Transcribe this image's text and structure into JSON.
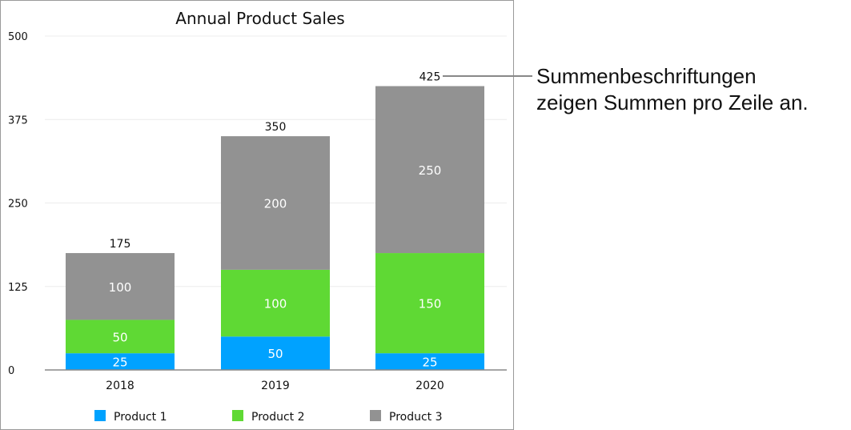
{
  "chart_data": {
    "type": "bar",
    "stacked": true,
    "title": "Annual Product Sales",
    "categories": [
      "2018",
      "2019",
      "2020"
    ],
    "series": [
      {
        "name": "Product 1",
        "color": "#00a2ff",
        "values": [
          25,
          50,
          25
        ]
      },
      {
        "name": "Product 2",
        "color": "#5fd934",
        "values": [
          50,
          100,
          150
        ]
      },
      {
        "name": "Product 3",
        "color": "#929292",
        "values": [
          100,
          200,
          250
        ]
      }
    ],
    "totals": [
      175,
      350,
      425
    ],
    "yticks": [
      0,
      125,
      250,
      375,
      500
    ],
    "ylim": [
      0,
      500
    ],
    "grid": true,
    "legend": "bottom"
  },
  "annotation": {
    "lines": [
      "Summenbeschriftungen",
      "zeigen Summen pro Zeile an."
    ]
  }
}
